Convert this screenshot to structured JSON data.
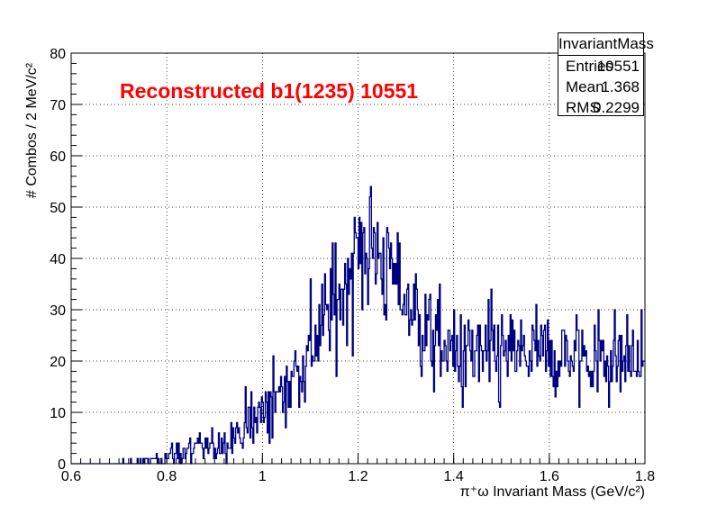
{
  "chart_data": {
    "type": "histogram",
    "title": "",
    "histogram_name": "InvariantMass",
    "xlabel": "π⁺ω Invariant Mass (GeV/c²)",
    "ylabel": "# Combos / 2 MeV/c²",
    "xlim": [
      0.6,
      1.8
    ],
    "ylim": [
      0,
      80
    ],
    "x_ticks": [
      "0.6",
      "0.8",
      "1",
      "1.2",
      "1.4",
      "1.6",
      "1.8"
    ],
    "y_ticks": [
      "0",
      "10",
      "20",
      "30",
      "40",
      "50",
      "60",
      "70",
      "80"
    ],
    "grid": true,
    "bin_width": 0.002,
    "annotation": "Reconstructed b1(1235) 10551",
    "line_color": "#000080",
    "annotation_color": "#ff0000",
    "stats": {
      "title": "InvariantMass",
      "rows": [
        {
          "label": "Entries",
          "value": "10551"
        },
        {
          "label": "Mean",
          "value": "1.368"
        },
        {
          "label": "RMS",
          "value": "0.2299"
        }
      ]
    },
    "envelope": {
      "x": [
        0.6,
        0.68,
        0.75,
        0.8,
        0.85,
        0.9,
        0.95,
        1.0,
        1.05,
        1.1,
        1.15,
        1.2,
        1.22,
        1.25,
        1.3,
        1.35,
        1.4,
        1.5,
        1.6,
        1.7,
        1.8
      ],
      "y": [
        0,
        0,
        0.5,
        1.5,
        2.5,
        3.5,
        6,
        10,
        15,
        22,
        31,
        41,
        43,
        40,
        32,
        25,
        21,
        21,
        21,
        21,
        20
      ]
    },
    "noise_amplitude_sqrt_factor": 1.0
  }
}
